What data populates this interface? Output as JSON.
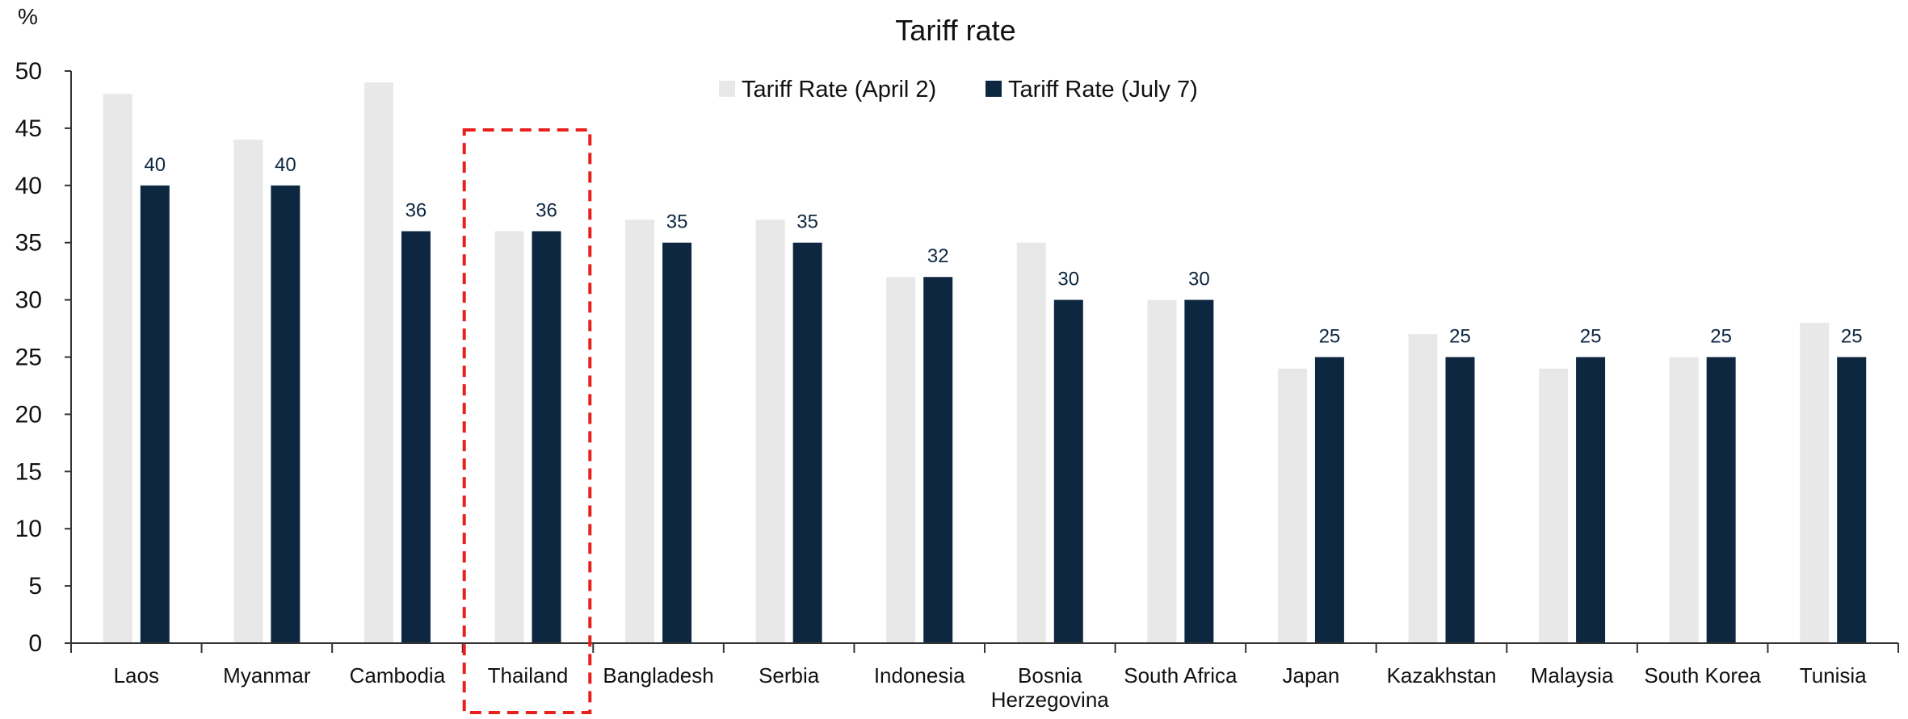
{
  "chart_data": {
    "type": "bar",
    "title": "Tariff rate",
    "ylabel": "%",
    "xlabel": "",
    "ylim": [
      0,
      50
    ],
    "yticks": [
      0,
      5,
      10,
      15,
      20,
      25,
      30,
      35,
      40,
      45,
      50
    ],
    "grid": false,
    "legend_position": "top-center",
    "categories": [
      [
        "Laos"
      ],
      [
        "Myanmar"
      ],
      [
        "Cambodia"
      ],
      [
        "Thailand"
      ],
      [
        "Bangladesh"
      ],
      [
        "Serbia"
      ],
      [
        "Indonesia"
      ],
      [
        "Bosnia",
        "Herzegovina"
      ],
      [
        "South Africa"
      ],
      [
        "Japan"
      ],
      [
        "Kazakhstan"
      ],
      [
        "Malaysia"
      ],
      [
        "South Korea"
      ],
      [
        "Tunisia"
      ]
    ],
    "series": [
      {
        "name": "Tariff Rate (April 2)",
        "color": "#e8e8e8",
        "values": [
          48,
          44,
          49,
          36,
          37,
          37,
          32,
          35,
          30,
          24,
          27,
          24,
          25,
          28
        ],
        "show_labels": false
      },
      {
        "name": "Tariff Rate (July 7)",
        "color": "#0e2741",
        "values": [
          40,
          40,
          36,
          36,
          35,
          35,
          32,
          30,
          30,
          25,
          25,
          25,
          25,
          25
        ],
        "show_labels": true
      }
    ],
    "highlight": {
      "category_index": 3,
      "style": "dashed-box",
      "color": "#e8201c"
    }
  }
}
